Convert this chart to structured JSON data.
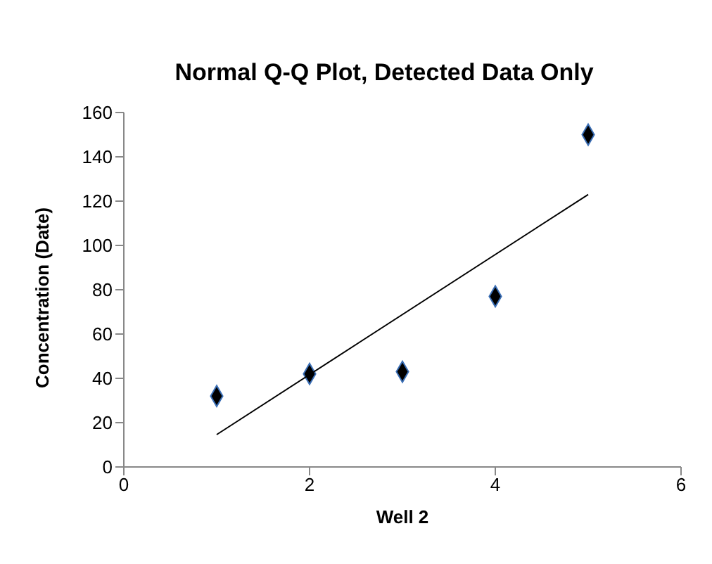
{
  "chart_data": {
    "type": "scatter",
    "title": "Normal Q-Q Plot, Detected Data Only",
    "xlabel": "Well 2",
    "ylabel": "Concentration (Date)",
    "x": [
      1,
      2,
      3,
      4,
      5
    ],
    "series": [
      {
        "color": "#000000",
        "values": [
          32,
          42,
          43,
          77,
          150
        ],
        "marker": "diamond"
      },
      {
        "type": "line",
        "color": "#000000",
        "x": [
          1,
          5
        ],
        "values": [
          14.6,
          123
        ]
      }
    ],
    "xlim": [
      0,
      6
    ],
    "xticks": [
      0,
      2,
      4,
      6
    ],
    "ylim": [
      0,
      160
    ],
    "yticks": [
      0,
      20,
      40,
      60,
      80,
      100,
      120,
      140,
      160
    ],
    "grid": false
  }
}
